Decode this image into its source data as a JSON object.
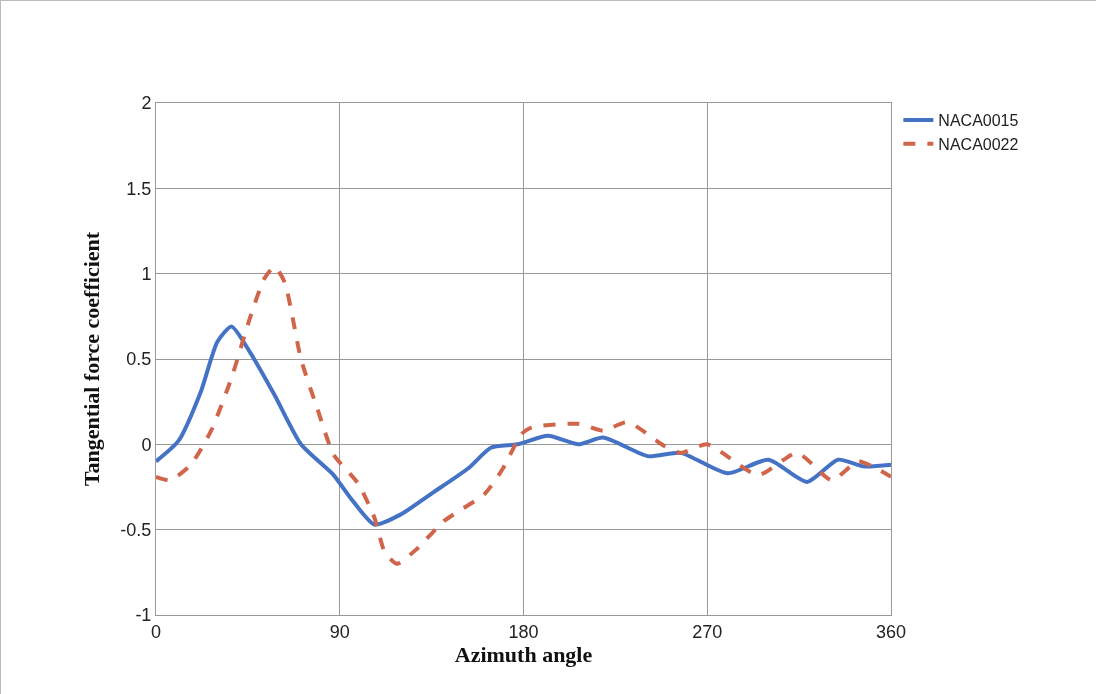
{
  "chart_data": {
    "type": "line",
    "xlabel": "Azimuth angle",
    "ylabel": "Tangential force coefficient",
    "xlim": [
      0,
      360
    ],
    "xticks": [
      0,
      90,
      180,
      270,
      360
    ],
    "ylim": [
      -1,
      2
    ],
    "yticks": [
      -1,
      -0.5,
      0,
      0.5,
      1,
      1.5,
      2
    ],
    "grid": true,
    "legend": "top right",
    "marker": "none",
    "series": [
      {
        "name": "NACA0015",
        "color": "#4472c4",
        "line_style": "solid",
        "x": [
          0,
          11,
          22,
          30,
          37,
          46,
          58,
          71,
          87,
          95,
          107,
          120,
          136,
          153,
          164,
          177,
          192,
          207,
          219,
          241,
          257,
          280,
          300,
          319,
          334,
          347,
          360
        ],
        "values": [
          -0.1,
          0.02,
          0.31,
          0.6,
          0.69,
          0.54,
          0.29,
          0.0,
          -0.18,
          -0.31,
          -0.47,
          -0.41,
          -0.28,
          -0.14,
          -0.02,
          0.0,
          0.05,
          0.0,
          0.04,
          -0.07,
          -0.05,
          -0.17,
          -0.09,
          -0.22,
          -0.09,
          -0.13,
          -0.12
        ]
      },
      {
        "name": "NACA0022",
        "color": "#d0654a",
        "line_style": "dashed",
        "x": [
          0,
          7,
          17,
          27,
          37,
          46,
          53,
          58,
          63,
          71,
          79,
          87,
          99,
          107,
          112,
          118,
          128,
          141,
          161,
          170,
          179,
          184,
          207,
          219,
          231,
          249,
          257,
          270,
          295,
          314,
          331,
          344,
          360
        ],
        "values": [
          -0.19,
          -0.21,
          -0.12,
          0.08,
          0.39,
          0.74,
          0.97,
          1.04,
          0.95,
          0.5,
          0.21,
          -0.06,
          -0.23,
          -0.43,
          -0.63,
          -0.7,
          -0.61,
          -0.45,
          -0.29,
          -0.14,
          0.06,
          0.1,
          0.12,
          0.08,
          0.13,
          -0.01,
          -0.05,
          0.0,
          -0.18,
          -0.05,
          -0.21,
          -0.1,
          -0.19
        ]
      }
    ]
  }
}
